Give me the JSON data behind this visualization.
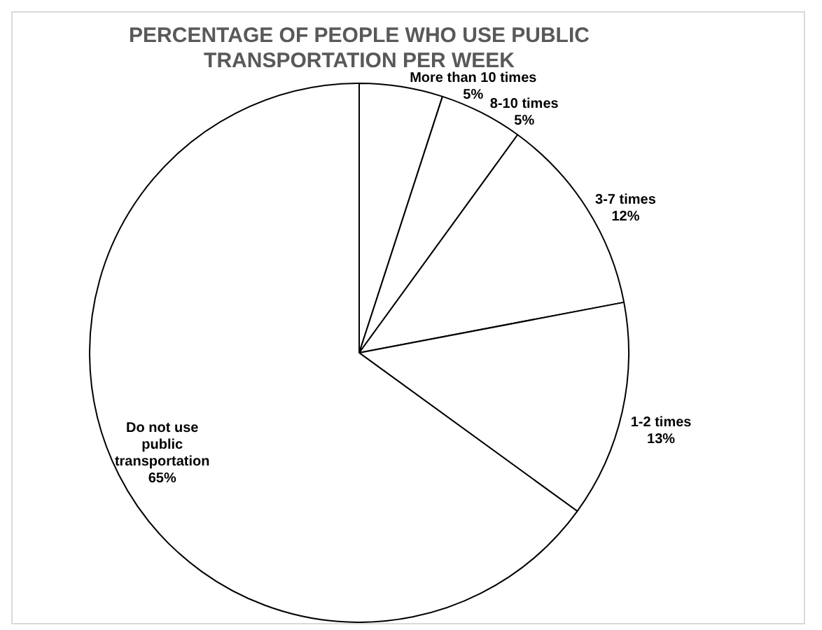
{
  "chart_data": {
    "type": "pie",
    "title": "PERCENTAGE OF PEOPLE WHO USE PUBLIC TRANSPORTATION PER WEEK",
    "categories": [
      "More than 10 times",
      "8-10 times",
      "3-7 times",
      "1-2 times",
      "Do not use public transportation"
    ],
    "values": [
      5,
      5,
      12,
      13,
      65
    ],
    "colors": [
      "#ffffff",
      "#ffffff",
      "#ffffff",
      "#ffffff",
      "#ffffff"
    ],
    "value_labels": [
      "5%",
      "5%",
      "12%",
      "13%",
      "65%"
    ],
    "legend": false
  }
}
